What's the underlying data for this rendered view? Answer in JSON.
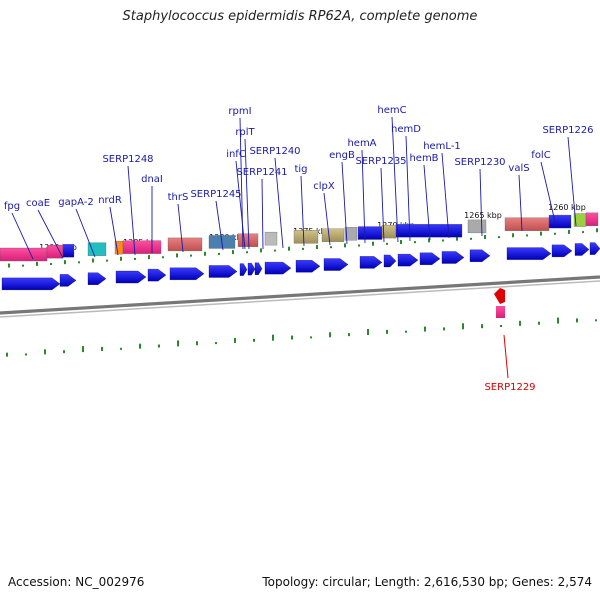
{
  "title": "Staphylococcus epidermidis RP62A, complete genome",
  "footer": {
    "accession": "Accession: NC_002976",
    "stats": "Topology: circular; Length: 2,616,530 bp; Genes: 2,574"
  },
  "scale_labels": [
    "1290 kbp",
    "1285 kbp",
    "1280 kbp",
    "1275 kbp",
    "1270 kbp",
    "1265 kbp",
    "1260 kbp"
  ],
  "gene_labels": [
    "fpg",
    "coaE",
    "gapA-2",
    "nrdR",
    "SERP1248",
    "dnaI",
    "thrS",
    "SERP1245",
    "rpmI",
    "rplT",
    "infC",
    "SERP1241",
    "SERP1240",
    "tig",
    "clpX",
    "engB",
    "hemA",
    "SERP1235",
    "hemC",
    "hemD",
    "hemB",
    "hemL-1",
    "SERP1230",
    "valS",
    "folC",
    "SERP1226"
  ],
  "reverse_gene_labels": [
    "SERP1229"
  ],
  "colors": {
    "forward_gene": "#0a0ae0",
    "reverse_gene": "#e00000",
    "backbone": "#777777",
    "gc_tick": "#2a8a2a",
    "label": "#1a1aa8"
  }
}
